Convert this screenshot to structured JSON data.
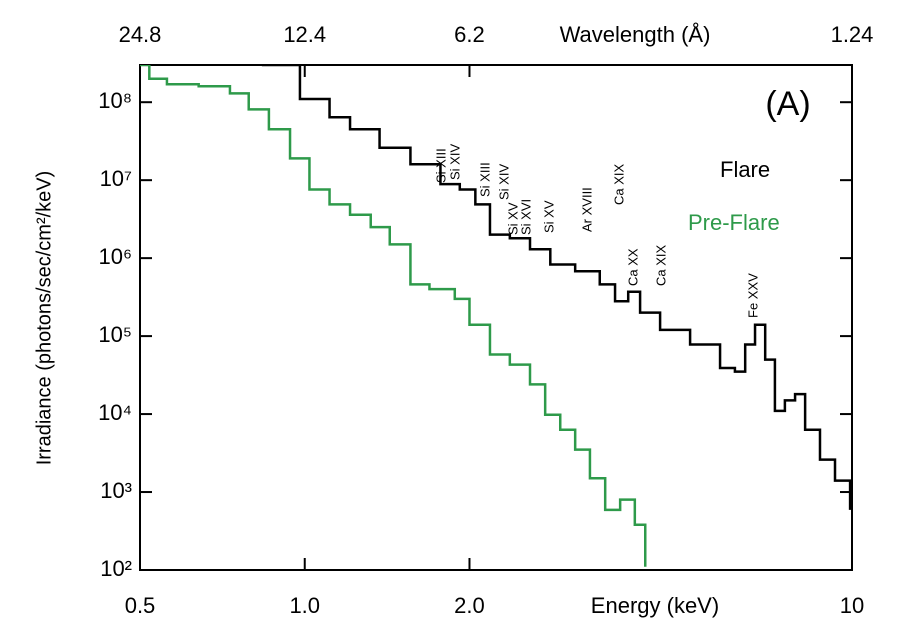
{
  "chart_data": {
    "type": "line",
    "drawstyle": "steps",
    "xscale": "log",
    "yscale": "log",
    "xlabel": "Energy (keV)",
    "ylabel": "Irradiance (photons/sec/cm²/keV)",
    "x2label": "Wavelength (Å)",
    "panel_label": "(A)",
    "xlim": [
      0.5,
      10
    ],
    "xticks": [
      0.5,
      {
        "value": 1,
        "label": "1.0"
      },
      {
        "value": 2,
        "label": "2.0"
      },
      10
    ],
    "x2lim": [
      24.8,
      1.24
    ],
    "x2ticks": [
      24.8,
      12.4,
      6.2,
      1.24
    ],
    "ylim": [
      100,
      300000000
    ],
    "yticks": [
      {
        "value": 100,
        "label": "10²"
      },
      {
        "value": 1000,
        "label": "10³"
      },
      {
        "value": 10000,
        "label": "10⁴"
      },
      {
        "value": 100000,
        "label": "10⁵"
      },
      {
        "value": 1000000,
        "label": "10⁶"
      },
      {
        "value": 10000000,
        "label": "10⁷"
      },
      {
        "value": 100000000,
        "label": "10⁸"
      }
    ],
    "series": [
      {
        "name": "Flare",
        "color": "#000000",
        "x": [
          0.835,
          0.98,
          1.11,
          1.21,
          1.37,
          1.56,
          1.77,
          1.92,
          2.05,
          2.18,
          2.37,
          2.58,
          2.81,
          3.12,
          3.46,
          3.69,
          3.9,
          4.1,
          4.46,
          5.06,
          5.74,
          6.11,
          6.38,
          6.65,
          6.94,
          7.23,
          7.54,
          7.87,
          8.21,
          8.74,
          9.31,
          9.92
        ],
        "values": [
          300000000,
          110000000,
          64000000,
          45000000,
          26000000,
          16000000,
          8900000,
          7600000,
          4900000,
          2000000,
          1800000,
          1300000,
          830000,
          680000,
          460000,
          280000,
          370000,
          200000,
          120000,
          78000,
          39000,
          35000,
          78000,
          140000,
          50000,
          11000,
          15000,
          18000,
          6300,
          2600,
          1400,
          590
        ]
      },
      {
        "name": "Pre-Flare",
        "color": "#2e9a4a",
        "x": [
          0.5,
          0.52,
          0.56,
          0.64,
          0.73,
          0.79,
          0.86,
          0.94,
          1.02,
          1.11,
          1.21,
          1.32,
          1.43,
          1.56,
          1.69,
          1.88,
          2.0,
          2.18,
          2.37,
          2.58,
          2.75,
          2.93,
          3.12,
          3.32,
          3.54,
          3.77,
          4.01,
          4.19
        ],
        "values": [
          300000000,
          200000000,
          170000000,
          160000000,
          130000000,
          81000000,
          45000000,
          19000000,
          7600000,
          4900000,
          3600000,
          2500000,
          1500000,
          460000,
          400000,
          300000,
          140000,
          58000,
          43000,
          24000,
          9800,
          6300,
          3500,
          1500,
          590,
          800,
          380,
          110
        ]
      }
    ],
    "line_labels": [
      "Si XIII",
      "Si XIV",
      "Si XIII",
      "Si XIV",
      "Si XV",
      "Si XVI",
      "Si XV",
      "Ar XVIII",
      "Ca XIX",
      "Ca XX",
      "Ca XIX",
      "Fe XXV"
    ]
  }
}
